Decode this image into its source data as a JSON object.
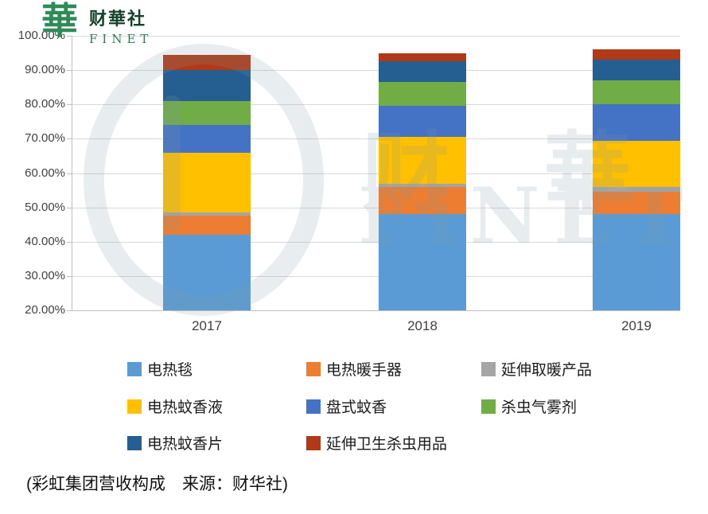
{
  "logo": {
    "seal_glyph": "華",
    "name": "财華社",
    "subname": "FINET"
  },
  "watermark": {
    "text_primary": "财 華 社",
    "text_secondary": "FiNET"
  },
  "chart_data": {
    "type": "bar",
    "stacked": true,
    "title": "彩虹集团营收构成",
    "categories": [
      "2017",
      "2018",
      "2019"
    ],
    "series": [
      {
        "name": "电热毯",
        "color": "#5B9BD5",
        "values": [
          22.0,
          28.0,
          28.0
        ]
      },
      {
        "name": "电热暖手器",
        "color": "#ED7D31",
        "values": [
          5.5,
          8.0,
          6.5
        ]
      },
      {
        "name": "延伸取暖产品",
        "color": "#A5A5A5",
        "values": [
          1.0,
          0.8,
          1.5
        ]
      },
      {
        "name": "电热蚊香液",
        "color": "#FFC000",
        "values": [
          17.5,
          13.7,
          13.5
        ]
      },
      {
        "name": "盘式蚊香",
        "color": "#4472C4",
        "values": [
          8.0,
          9.0,
          10.5
        ]
      },
      {
        "name": "杀虫气雾剂",
        "color": "#70AD47",
        "values": [
          7.0,
          7.0,
          7.0
        ]
      },
      {
        "name": "电热蚊香片",
        "color": "#255E91",
        "values": [
          9.0,
          6.0,
          6.0
        ]
      },
      {
        "name": "延伸卫生杀虫用品",
        "color": "#B03A17",
        "values": [
          4.5,
          2.5,
          3.0
        ]
      }
    ],
    "ylim": [
      20,
      100
    ],
    "ytick_step": 10,
    "yticks": [
      "100.00%",
      "90.00%",
      "80.00%",
      "70.00%",
      "60.00%",
      "50.00%",
      "40.00%",
      "30.00%",
      "20.00%"
    ],
    "grid": true,
    "legend_position": "bottom",
    "note": "bars clipped at axis minimum 20%; segment values are visible spans in percentage points"
  },
  "caption": "(彩虹集团营收构成　来源：财华社)"
}
